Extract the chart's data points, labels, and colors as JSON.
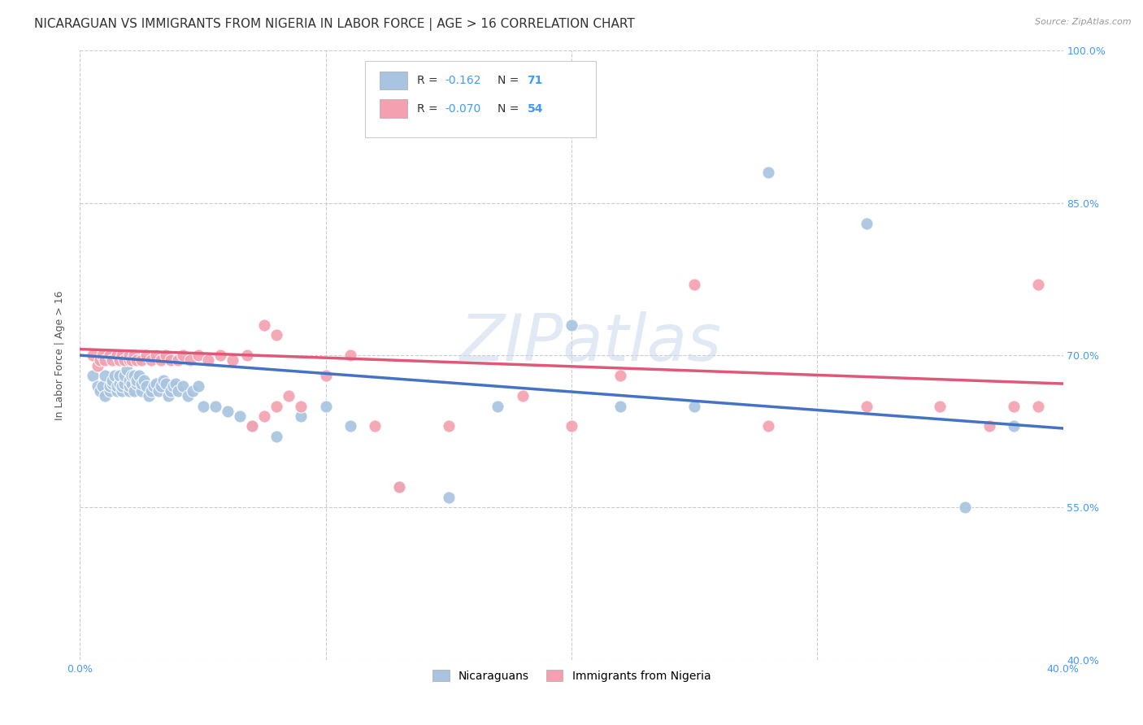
{
  "title": "NICARAGUAN VS IMMIGRANTS FROM NIGERIA IN LABOR FORCE | AGE > 16 CORRELATION CHART",
  "source": "Source: ZipAtlas.com",
  "ylabel": "In Labor Force | Age > 16",
  "xlim": [
    0.0,
    0.4
  ],
  "ylim": [
    0.4,
    1.0
  ],
  "yticks": [
    0.4,
    0.55,
    0.7,
    0.85,
    1.0
  ],
  "ytick_labels": [
    "40.0%",
    "55.0%",
    "70.0%",
    "85.0%",
    "100.0%"
  ],
  "xticks": [
    0.0,
    0.1,
    0.2,
    0.3,
    0.4
  ],
  "xtick_labels": [
    "0.0%",
    "",
    "",
    "",
    "40.0%"
  ],
  "blue_R": "-0.162",
  "blue_N": "71",
  "pink_R": "-0.070",
  "pink_N": "54",
  "blue_color": "#a8c4e0",
  "pink_color": "#f4a0b0",
  "blue_line_color": "#4472c4",
  "pink_line_color": "#e05878",
  "watermark": "ZIPatlas",
  "blue_scatter_x": [
    0.005,
    0.007,
    0.008,
    0.009,
    0.01,
    0.01,
    0.01,
    0.012,
    0.012,
    0.013,
    0.013,
    0.014,
    0.015,
    0.015,
    0.016,
    0.016,
    0.017,
    0.017,
    0.018,
    0.018,
    0.019,
    0.02,
    0.02,
    0.02,
    0.021,
    0.021,
    0.022,
    0.022,
    0.023,
    0.023,
    0.024,
    0.025,
    0.025,
    0.026,
    0.027,
    0.028,
    0.029,
    0.03,
    0.031,
    0.032,
    0.033,
    0.034,
    0.035,
    0.036,
    0.037,
    0.038,
    0.039,
    0.04,
    0.042,
    0.044,
    0.046,
    0.048,
    0.05,
    0.055,
    0.06,
    0.065,
    0.07,
    0.08,
    0.09,
    0.1,
    0.11,
    0.13,
    0.15,
    0.17,
    0.2,
    0.22,
    0.25,
    0.28,
    0.32,
    0.36,
    0.38
  ],
  "blue_scatter_y": [
    0.68,
    0.67,
    0.665,
    0.67,
    0.66,
    0.68,
    0.7,
    0.665,
    0.67,
    0.672,
    0.675,
    0.68,
    0.665,
    0.67,
    0.672,
    0.68,
    0.665,
    0.67,
    0.672,
    0.68,
    0.686,
    0.665,
    0.67,
    0.675,
    0.672,
    0.68,
    0.665,
    0.68,
    0.672,
    0.675,
    0.68,
    0.665,
    0.672,
    0.675,
    0.67,
    0.66,
    0.665,
    0.67,
    0.672,
    0.665,
    0.67,
    0.675,
    0.672,
    0.66,
    0.665,
    0.67,
    0.672,
    0.665,
    0.67,
    0.66,
    0.665,
    0.67,
    0.65,
    0.65,
    0.645,
    0.64,
    0.63,
    0.62,
    0.64,
    0.65,
    0.63,
    0.57,
    0.56,
    0.65,
    0.73,
    0.65,
    0.65,
    0.88,
    0.83,
    0.55,
    0.63
  ],
  "pink_scatter_x": [
    0.005,
    0.007,
    0.008,
    0.009,
    0.01,
    0.012,
    0.013,
    0.015,
    0.016,
    0.017,
    0.018,
    0.02,
    0.02,
    0.021,
    0.022,
    0.023,
    0.025,
    0.027,
    0.029,
    0.031,
    0.033,
    0.035,
    0.037,
    0.04,
    0.042,
    0.045,
    0.048,
    0.052,
    0.057,
    0.062,
    0.068,
    0.075,
    0.08,
    0.09,
    0.1,
    0.11,
    0.12,
    0.13,
    0.15,
    0.18,
    0.2,
    0.22,
    0.25,
    0.28,
    0.32,
    0.35,
    0.37,
    0.38,
    0.39,
    0.39,
    0.07,
    0.075,
    0.08,
    0.085
  ],
  "pink_scatter_y": [
    0.7,
    0.69,
    0.695,
    0.7,
    0.695,
    0.7,
    0.695,
    0.7,
    0.695,
    0.7,
    0.695,
    0.695,
    0.7,
    0.695,
    0.7,
    0.695,
    0.695,
    0.7,
    0.695,
    0.7,
    0.695,
    0.7,
    0.695,
    0.695,
    0.7,
    0.695,
    0.7,
    0.695,
    0.7,
    0.695,
    0.7,
    0.73,
    0.72,
    0.65,
    0.68,
    0.7,
    0.63,
    0.57,
    0.63,
    0.66,
    0.63,
    0.68,
    0.77,
    0.63,
    0.65,
    0.65,
    0.63,
    0.65,
    0.77,
    0.65,
    0.63,
    0.64,
    0.65,
    0.66
  ],
  "blue_line_x": [
    0.0,
    0.4
  ],
  "blue_line_y": [
    0.7,
    0.628
  ],
  "pink_line_x": [
    0.0,
    0.4
  ],
  "pink_line_y": [
    0.706,
    0.672
  ],
  "grid_color": "#cccccc",
  "background_color": "#ffffff",
  "title_fontsize": 11,
  "axis_label_fontsize": 9,
  "tick_fontsize": 9,
  "scatter_size": 120
}
